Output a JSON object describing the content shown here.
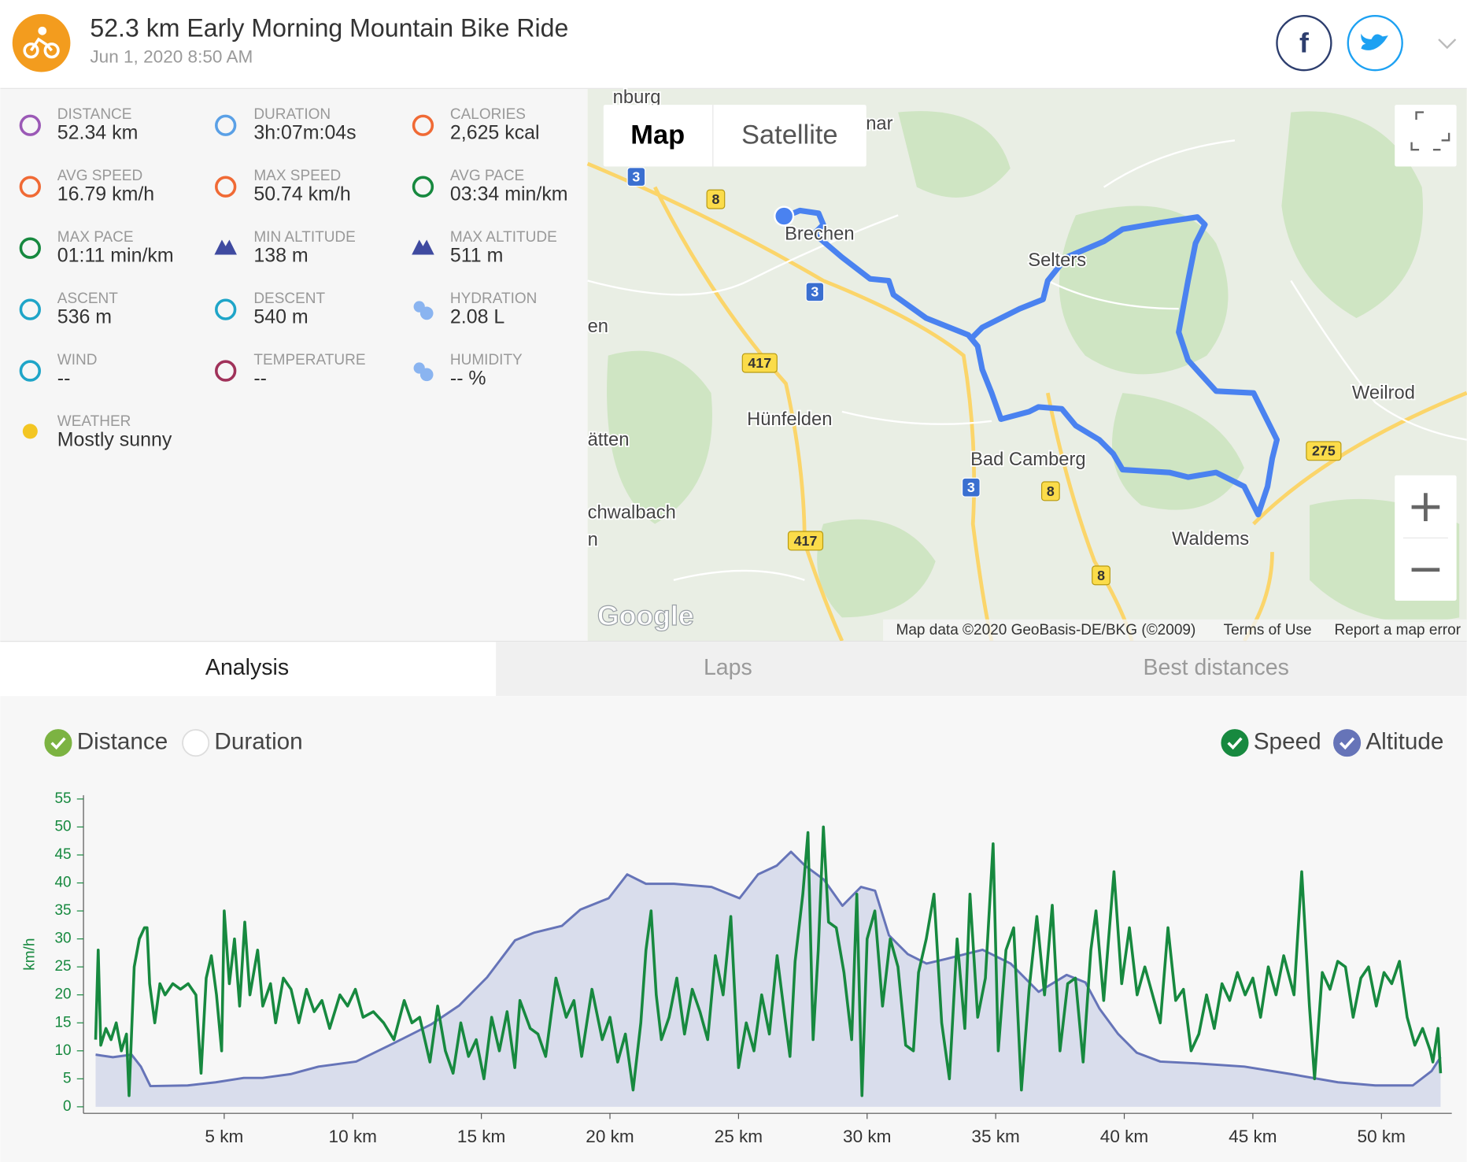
{
  "header": {
    "title": "52.3 km Early Morning Mountain Bike Ride",
    "date": "Jun 1, 2020 8:50 AM"
  },
  "stats": [
    {
      "label": "DISTANCE",
      "value": "52.34 km"
    },
    {
      "label": "DURATION",
      "value": "3h:07m:04s"
    },
    {
      "label": "CALORIES",
      "value": "2,625 kcal"
    },
    {
      "label": "AVG SPEED",
      "value": "16.79 km/h"
    },
    {
      "label": "MAX SPEED",
      "value": "50.74 km/h"
    },
    {
      "label": "AVG PACE",
      "value": "03:34 min/km"
    },
    {
      "label": "MAX PACE",
      "value": "01:11 min/km"
    },
    {
      "label": "MIN ALTITUDE",
      "value": "138 m"
    },
    {
      "label": "MAX ALTITUDE",
      "value": "511 m"
    },
    {
      "label": "ASCENT",
      "value": "536 m"
    },
    {
      "label": "DESCENT",
      "value": "540 m"
    },
    {
      "label": "HYDRATION",
      "value": "2.08 L"
    },
    {
      "label": "WIND",
      "value": "--"
    },
    {
      "label": "TEMPERATURE",
      "value": "--"
    },
    {
      "label": "HUMIDITY",
      "value": "-- %"
    },
    {
      "label": "WEATHER",
      "value": "Mostly sunny"
    }
  ],
  "map": {
    "buttons": [
      "Map",
      "Satellite"
    ],
    "places": [
      "nburg",
      "nar",
      "Brechen",
      "Selters",
      "Weilrod",
      "Hünfelden",
      "Bad Camberg",
      "Waldems",
      "en",
      "ätten",
      "chwalbach",
      "n"
    ],
    "roads": [
      "3",
      "3",
      "3",
      "8",
      "8",
      "8",
      "417",
      "417",
      "275"
    ],
    "logo": "Google",
    "attribution": [
      "Map data ©2020 GeoBasis-DE/BKG (©2009)",
      "Terms of Use",
      "Report a map error"
    ]
  },
  "tabs": [
    "Analysis",
    "Laps",
    "Best distances"
  ],
  "x_modes": [
    "Distance",
    "Duration"
  ],
  "chart_data": {
    "type": "line",
    "y_label": "km/h",
    "xlim": [
      0,
      52.3
    ],
    "xticks": [
      {
        "value": 5,
        "label": "5 km"
      },
      {
        "value": 10,
        "label": "10 km"
      },
      {
        "value": 15,
        "label": "15 km"
      },
      {
        "value": 20,
        "label": "20 km"
      },
      {
        "value": 25,
        "label": "25 km"
      },
      {
        "value": 30,
        "label": "30 km"
      },
      {
        "value": 35,
        "label": "35 km"
      },
      {
        "value": 40,
        "label": "40 km"
      },
      {
        "value": 45,
        "label": "45 km"
      },
      {
        "value": 50,
        "label": "50 km"
      }
    ],
    "ylim": [
      0,
      55
    ],
    "yticks": [
      0,
      5,
      10,
      15,
      20,
      25,
      30,
      35,
      40,
      45,
      50,
      55
    ],
    "y2lim": [
      105,
      595
    ],
    "series": [
      {
        "name": "Speed",
        "color": "#17893f",
        "x": [
          0,
          0.1,
          0.2,
          0.4,
          0.6,
          0.8,
          1.0,
          1.2,
          1.3,
          1.5,
          1.7,
          1.9,
          2.0,
          2.1,
          2.3,
          2.5,
          2.7,
          3.0,
          3.3,
          3.6,
          3.9,
          4.1,
          4.3,
          4.5,
          4.7,
          4.9,
          5.0,
          5.2,
          5.4,
          5.6,
          5.8,
          6.0,
          6.3,
          6.5,
          6.8,
          7.0,
          7.3,
          7.6,
          7.9,
          8.2,
          8.5,
          8.8,
          9.1,
          9.5,
          9.8,
          10.1,
          10.4,
          10.8,
          11.2,
          11.6,
          12.0,
          12.3,
          12.6,
          13.0,
          13.3,
          13.6,
          13.9,
          14.2,
          14.5,
          14.8,
          15.1,
          15.4,
          15.7,
          16.0,
          16.3,
          16.5,
          16.9,
          17.2,
          17.5,
          17.9,
          18.3,
          18.6,
          18.9,
          19.3,
          19.7,
          20.0,
          20.3,
          20.6,
          20.9,
          21.2,
          21.4,
          21.6,
          21.8,
          22.0,
          22.3,
          22.6,
          22.9,
          23.2,
          23.5,
          23.8,
          24.1,
          24.4,
          24.7,
          25.0,
          25.3,
          25.6,
          25.9,
          26.2,
          26.5,
          26.8,
          27.0,
          27.2,
          27.5,
          27.7,
          27.9,
          28.1,
          28.3,
          28.5,
          28.8,
          29.1,
          29.4,
          29.6,
          29.8,
          30.0,
          30.3,
          30.6,
          30.9,
          31.2,
          31.5,
          31.8,
          32.0,
          32.3,
          32.6,
          32.9,
          33.2,
          33.5,
          33.8,
          34.0,
          34.3,
          34.6,
          34.9,
          35.1,
          35.4,
          35.7,
          36.0,
          36.3,
          36.6,
          36.9,
          37.2,
          37.5,
          37.8,
          38.1,
          38.4,
          38.7,
          38.9,
          39.2,
          39.6,
          39.9,
          40.2,
          40.5,
          40.8,
          41.1,
          41.4,
          41.7,
          42.0,
          42.3,
          42.6,
          42.9,
          43.2,
          43.5,
          43.8,
          44.1,
          44.4,
          44.7,
          45.0,
          45.3,
          45.6,
          45.9,
          46.2,
          46.6,
          46.9,
          47.2,
          47.4,
          47.7,
          48.0,
          48.3,
          48.6,
          48.9,
          49.2,
          49.5,
          49.8,
          50.1,
          50.4,
          50.7,
          51.0,
          51.3,
          51.6,
          51.9,
          52.0,
          52.2,
          52.3
        ],
        "values": [
          12,
          28,
          11,
          14,
          12,
          15,
          10,
          13,
          2,
          25,
          30,
          32,
          32,
          22,
          15,
          22,
          20,
          22,
          21,
          22,
          20,
          6,
          23,
          27,
          20,
          10,
          35,
          22,
          30,
          18,
          33,
          20,
          28,
          18,
          22,
          15,
          23,
          21,
          15,
          21,
          17,
          19,
          14,
          20,
          18,
          21,
          16,
          17,
          15,
          12,
          19,
          15,
          16,
          8,
          18,
          10,
          6,
          15,
          9,
          12,
          5,
          16,
          10,
          17,
          7,
          19,
          14,
          13,
          9,
          23,
          16,
          19,
          9,
          21,
          12,
          16,
          8,
          13,
          3,
          15,
          28,
          35,
          20,
          12,
          16,
          23,
          13,
          21,
          17,
          12,
          27,
          20,
          34,
          7,
          15,
          10,
          20,
          13,
          27,
          16,
          9,
          26,
          38,
          49,
          12,
          28,
          50,
          33,
          32,
          24,
          12,
          38,
          2,
          30,
          35,
          18,
          30,
          25,
          11,
          10,
          24,
          30,
          38,
          15,
          5,
          30,
          14,
          38,
          16,
          23,
          47,
          10,
          28,
          32,
          3,
          21,
          34,
          20,
          36,
          10,
          22,
          23,
          8,
          28,
          35,
          19,
          42,
          22,
          32,
          20,
          25,
          20,
          15,
          32,
          19,
          21,
          10,
          13,
          20,
          14,
          22,
          19,
          24,
          20,
          23,
          16,
          25,
          20,
          27,
          20,
          42,
          18,
          5,
          24,
          21,
          26,
          25,
          16,
          23,
          25,
          18,
          24,
          22,
          26,
          16,
          11,
          14,
          10,
          8,
          14,
          6
        ]
      },
      {
        "name": "Altitude",
        "color": "#6674b8",
        "axis": "y2",
        "x": [
          0,
          0.67,
          1.4,
          1.76,
          2.13,
          3.58,
          4.67,
          5.76,
          6.49,
          7.58,
          8.67,
          10.13,
          11.58,
          13.04,
          14.13,
          15.22,
          16.31,
          17.04,
          18.13,
          18.85,
          19.95,
          20.67,
          21.4,
          22.49,
          23.95,
          25.04,
          25.76,
          26.49,
          27.04,
          27.58,
          28.31,
          29.04,
          29.76,
          30.31,
          30.85,
          31.58,
          32.31,
          33.04,
          34.49,
          35.58,
          36.67,
          37.76,
          38.49,
          39.04,
          39.76,
          40.49,
          41.4,
          42.85,
          44.67,
          46.49,
          48.31,
          49.76,
          51.22,
          51.95,
          52.3
        ],
        "values": [
          188,
          184,
          188,
          169,
          138,
          139,
          144,
          151,
          151,
          157,
          169,
          177,
          206,
          236,
          266,
          311,
          370,
          382,
          393,
          419,
          437,
          475,
          460,
          460,
          455,
          437,
          475,
          489,
          511,
          489,
          467,
          425,
          455,
          449,
          378,
          348,
          333,
          340,
          355,
          333,
          288,
          315,
          303,
          261,
          221,
          191,
          177,
          174,
          169,
          157,
          144,
          139,
          139,
          162,
          184
        ]
      }
    ]
  }
}
